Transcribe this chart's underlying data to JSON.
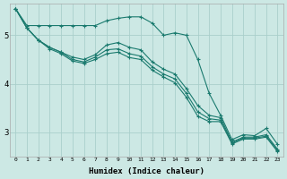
{
  "xlabel": "Humidex (Indice chaleur)",
  "background_color": "#cce8e4",
  "line_color": "#1a7a6e",
  "grid_color": "#aacfcb",
  "xlim": [
    -0.5,
    23.5
  ],
  "ylim": [
    2.5,
    5.65
  ],
  "yticks": [
    3,
    4,
    5
  ],
  "xticks": [
    0,
    1,
    2,
    3,
    4,
    5,
    6,
    7,
    8,
    9,
    10,
    11,
    12,
    13,
    14,
    15,
    16,
    17,
    18,
    19,
    20,
    21,
    22,
    23
  ],
  "series": [
    [
      5.55,
      5.2,
      5.2,
      5.2,
      5.2,
      5.2,
      5.2,
      5.2,
      5.3,
      5.35,
      5.38,
      5.38,
      5.25,
      5.0,
      5.05,
      5.0,
      4.5,
      3.8,
      3.35,
      2.85,
      2.95,
      2.93,
      3.08,
      2.75
    ],
    [
      5.55,
      5.15,
      4.9,
      4.75,
      4.65,
      4.55,
      4.5,
      4.6,
      4.8,
      4.85,
      4.75,
      4.7,
      4.45,
      4.3,
      4.2,
      3.9,
      3.55,
      3.35,
      3.3,
      2.8,
      2.9,
      2.9,
      2.95,
      2.65
    ],
    [
      5.55,
      5.15,
      4.9,
      4.75,
      4.65,
      4.5,
      4.45,
      4.55,
      4.7,
      4.72,
      4.62,
      4.57,
      4.35,
      4.2,
      4.1,
      3.8,
      3.42,
      3.28,
      3.25,
      2.78,
      2.88,
      2.88,
      2.92,
      2.63
    ],
    [
      5.55,
      5.15,
      4.9,
      4.72,
      4.62,
      4.47,
      4.42,
      4.5,
      4.62,
      4.65,
      4.54,
      4.5,
      4.28,
      4.14,
      4.02,
      3.72,
      3.33,
      3.22,
      3.22,
      2.76,
      2.86,
      2.86,
      2.9,
      2.6
    ]
  ]
}
